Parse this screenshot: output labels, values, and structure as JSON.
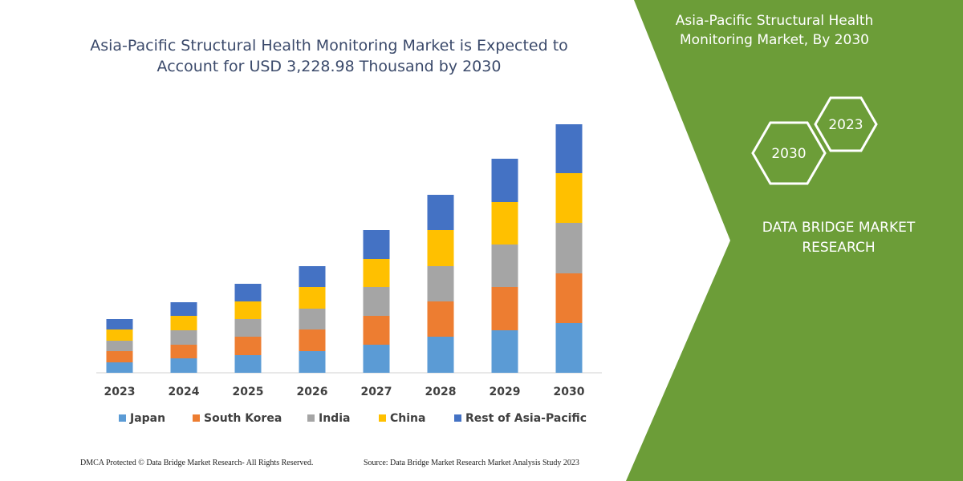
{
  "chart_data": {
    "type": "stacked-bar",
    "title": "Asia-Pacific Structural Health Monitoring Market is Expected to Account for USD 3,228.98 Thousand by 2030",
    "categories": [
      "2023",
      "2024",
      "2025",
      "2026",
      "2027",
      "2028",
      "2029",
      "2030"
    ],
    "series": [
      {
        "name": "Japan",
        "color": "#5b9bd5",
        "values": [
          13,
          18,
          22,
          27,
          35,
          45,
          53,
          62
        ]
      },
      {
        "name": "South Korea",
        "color": "#ed7d31",
        "values": [
          14,
          17,
          23,
          27,
          36,
          44,
          54,
          62
        ]
      },
      {
        "name": "India",
        "color": "#a5a5a5",
        "values": [
          13,
          18,
          22,
          26,
          36,
          44,
          53,
          63
        ]
      },
      {
        "name": "China",
        "color": "#ffc000",
        "values": [
          14,
          18,
          22,
          27,
          35,
          45,
          53,
          62
        ]
      },
      {
        "name": "Rest of Asia-Pacific",
        "color": "#4472c4",
        "values": [
          13,
          17,
          22,
          26,
          36,
          44,
          54,
          61
        ]
      }
    ],
    "ylim": [
      0,
      310
    ]
  },
  "panel": {
    "title": "Asia-Pacific Structural Health Monitoring Market, By 2030",
    "badges": [
      "2023",
      "2030"
    ],
    "brand": "DATA BRIDGE MARKET RESEARCH"
  },
  "footer": {
    "left": "DMCA Protected © Data Bridge Market Research-  All Rights Reserved.",
    "right": "Source: Data Bridge Market Research  Market Analysis Study 2023"
  }
}
